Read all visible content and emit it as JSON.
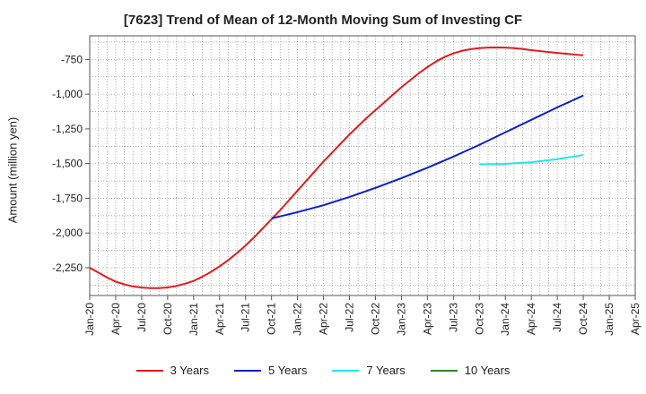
{
  "chart_data": {
    "type": "line",
    "title": "[7623]  Trend of Mean of 12-Month Moving Sum of Investing CF",
    "ylabel": "Amount (million yen)",
    "xlabel": "",
    "x_ticks": [
      "Jan-20",
      "Apr-20",
      "Jul-20",
      "Oct-20",
      "Jan-21",
      "Apr-21",
      "Jul-21",
      "Oct-21",
      "Jan-22",
      "Apr-22",
      "Jul-22",
      "Oct-22",
      "Jan-23",
      "Apr-23",
      "Jul-23",
      "Oct-23",
      "Jan-24",
      "Apr-24",
      "Jul-24",
      "Oct-24",
      "Jan-25",
      "Apr-25"
    ],
    "y_ticks": [
      -750,
      -1000,
      -1250,
      -1500,
      -1750,
      -2000,
      -2250
    ],
    "y_tick_labels": [
      "-750",
      "-1,000",
      "-1,250",
      "-1,500",
      "-1,750",
      "-2,000",
      "-2,250"
    ],
    "ylim": [
      -2450,
      -580
    ],
    "grid": true,
    "legend_position": "bottom",
    "series": [
      {
        "name": "3 Years",
        "color": "#e31a1c",
        "points": [
          [
            "Jan-20",
            -2250
          ],
          [
            "Feb-20",
            -2285
          ],
          [
            "Mar-20",
            -2320
          ],
          [
            "Apr-20",
            -2350
          ],
          [
            "May-20",
            -2370
          ],
          [
            "Jun-20",
            -2385
          ],
          [
            "Jul-20",
            -2393
          ],
          [
            "Aug-20",
            -2397
          ],
          [
            "Sep-20",
            -2397
          ],
          [
            "Oct-20",
            -2392
          ],
          [
            "Nov-20",
            -2382
          ],
          [
            "Dec-20",
            -2365
          ],
          [
            "Jan-21",
            -2345
          ],
          [
            "Feb-21",
            -2315
          ],
          [
            "Mar-21",
            -2280
          ],
          [
            "Apr-21",
            -2240
          ],
          [
            "May-21",
            -2195
          ],
          [
            "Jun-21",
            -2145
          ],
          [
            "Jul-21",
            -2090
          ],
          [
            "Aug-21",
            -2030
          ],
          [
            "Sep-21",
            -1965
          ],
          [
            "Oct-21",
            -1900
          ],
          [
            "Nov-21",
            -1835
          ],
          [
            "Dec-21",
            -1765
          ],
          [
            "Jan-22",
            -1695
          ],
          [
            "Feb-22",
            -1625
          ],
          [
            "Mar-22",
            -1555
          ],
          [
            "Apr-22",
            -1485
          ],
          [
            "May-22",
            -1420
          ],
          [
            "Jun-22",
            -1355
          ],
          [
            "Jul-22",
            -1290
          ],
          [
            "Aug-22",
            -1230
          ],
          [
            "Sep-22",
            -1170
          ],
          [
            "Oct-22",
            -1115
          ],
          [
            "Nov-22",
            -1060
          ],
          [
            "Dec-22",
            -1005
          ],
          [
            "Jan-23",
            -950
          ],
          [
            "Feb-23",
            -900
          ],
          [
            "Mar-23",
            -850
          ],
          [
            "Apr-23",
            -805
          ],
          [
            "May-23",
            -765
          ],
          [
            "Jun-23",
            -732
          ],
          [
            "Jul-23",
            -706
          ],
          [
            "Aug-23",
            -688
          ],
          [
            "Sep-23",
            -676
          ],
          [
            "Oct-23",
            -669
          ],
          [
            "Nov-23",
            -665
          ],
          [
            "Dec-23",
            -664
          ],
          [
            "Jan-24",
            -665
          ],
          [
            "Feb-24",
            -669
          ],
          [
            "Mar-24",
            -675
          ],
          [
            "Apr-24",
            -683
          ],
          [
            "May-24",
            -690
          ],
          [
            "Jun-24",
            -697
          ],
          [
            "Jul-24",
            -703
          ],
          [
            "Aug-24",
            -709
          ],
          [
            "Sep-24",
            -715
          ],
          [
            "Oct-24",
            -720
          ]
        ]
      },
      {
        "name": "5 Years",
        "color": "#0a1fcc",
        "points": [
          [
            "Oct-21",
            -1895
          ],
          [
            "Jan-22",
            -1850
          ],
          [
            "Apr-22",
            -1800
          ],
          [
            "Jul-22",
            -1740
          ],
          [
            "Oct-22",
            -1675
          ],
          [
            "Jan-23",
            -1605
          ],
          [
            "Apr-23",
            -1530
          ],
          [
            "Jul-23",
            -1450
          ],
          [
            "Oct-23",
            -1365
          ],
          [
            "Jan-24",
            -1275
          ],
          [
            "Apr-24",
            -1185
          ],
          [
            "Jul-24",
            -1095
          ],
          [
            "Oct-24",
            -1010
          ]
        ]
      },
      {
        "name": "7 Years",
        "color": "#1ee6f0",
        "points": [
          [
            "Oct-23",
            -1505
          ],
          [
            "Jan-24",
            -1502
          ],
          [
            "Apr-24",
            -1490
          ],
          [
            "Jul-24",
            -1468
          ],
          [
            "Oct-24",
            -1438
          ]
        ]
      },
      {
        "name": "10 Years",
        "color": "#2a8a2a",
        "points": []
      }
    ]
  }
}
